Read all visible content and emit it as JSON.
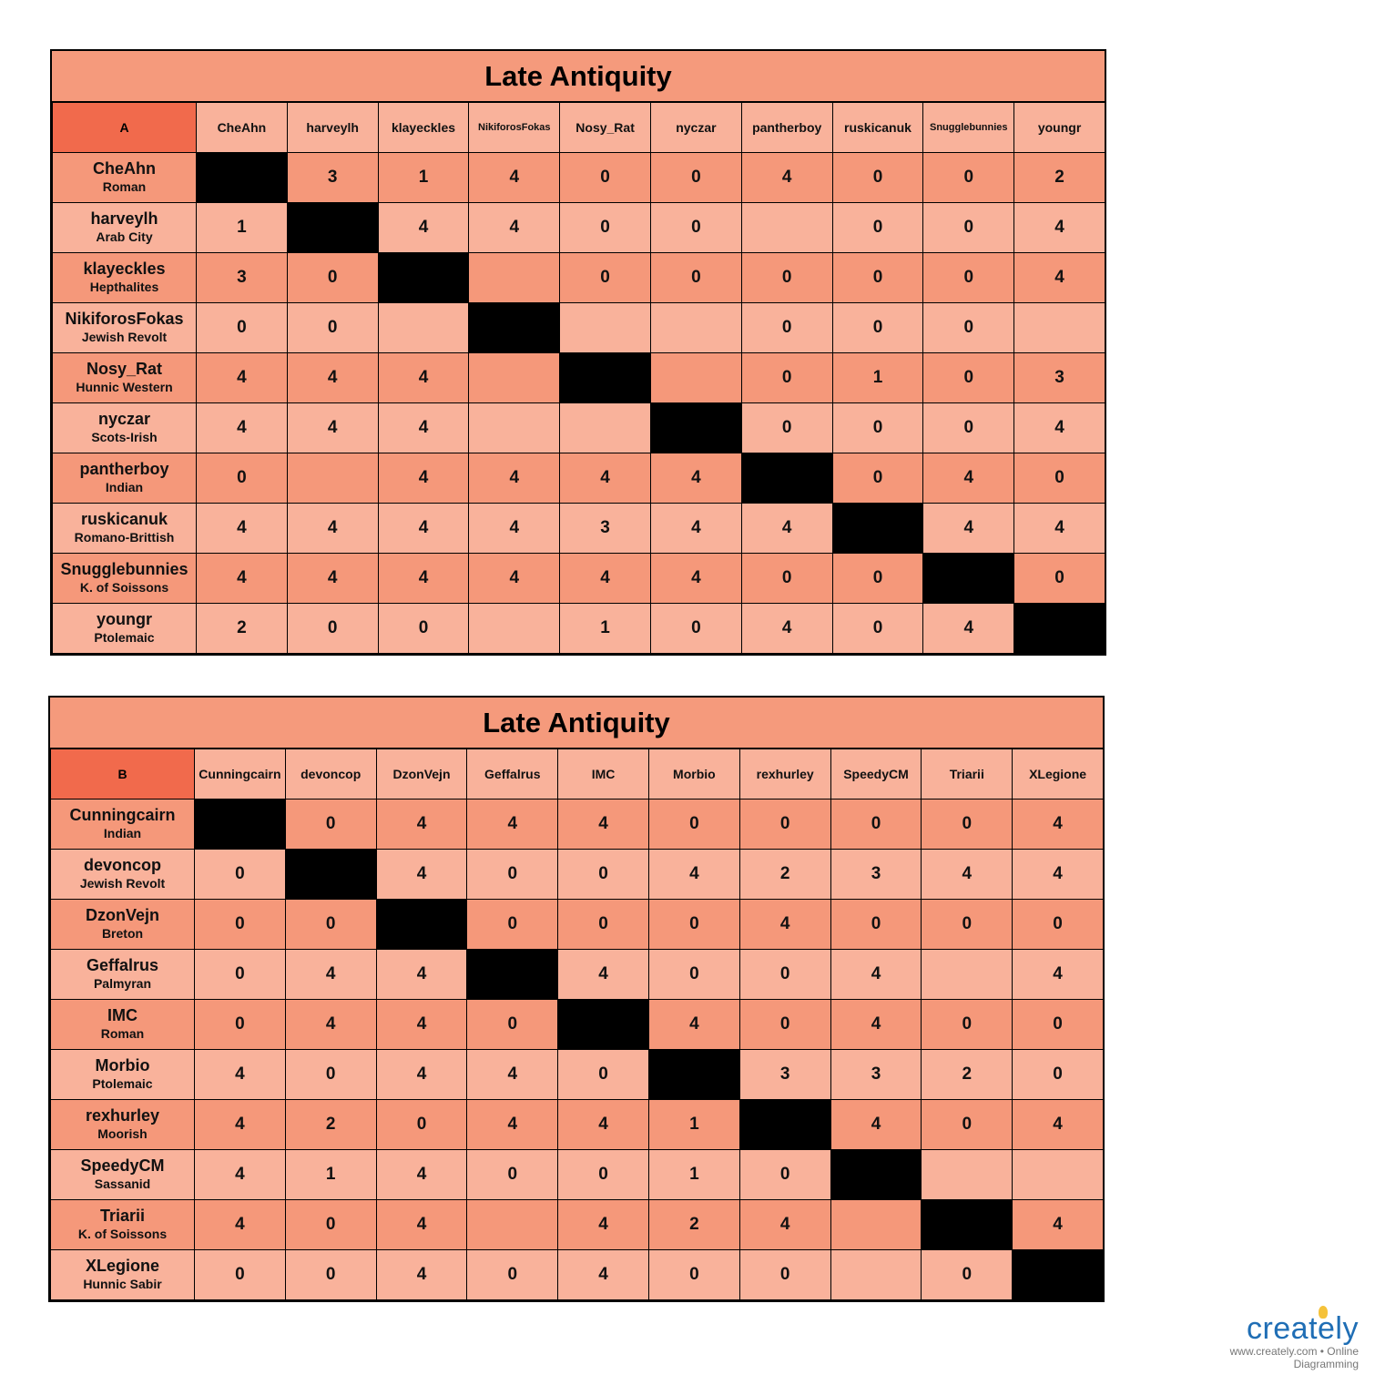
{
  "group_a": {
    "title": "Late Antiquity",
    "letter": "A",
    "columns": [
      "CheAhn",
      "harveylh",
      "klayeckles",
      "NikiforosFokas",
      "Nosy_Rat",
      "nyczar",
      "pantherboy",
      "ruskicanuk",
      "Snugglebunnies",
      "youngr"
    ],
    "rows": [
      {
        "name": "CheAhn",
        "civ": "Roman",
        "cells": [
          "",
          "3",
          "1",
          "4",
          "0",
          "0",
          "4",
          "0",
          "0",
          "2"
        ]
      },
      {
        "name": "harveylh",
        "civ": "Arab City",
        "cells": [
          "1",
          "",
          "4",
          "4",
          "0",
          "0",
          "",
          "0",
          "0",
          "4"
        ]
      },
      {
        "name": "klayeckles",
        "civ": "Hepthalites",
        "cells": [
          "3",
          "0",
          "",
          "",
          "0",
          "0",
          "0",
          "0",
          "0",
          "4"
        ]
      },
      {
        "name": "NikiforosFokas",
        "civ": "Jewish Revolt",
        "cells": [
          "0",
          "0",
          "",
          "",
          "",
          "",
          "0",
          "0",
          "0",
          ""
        ]
      },
      {
        "name": "Nosy_Rat",
        "civ": "Hunnic Western",
        "cells": [
          "4",
          "4",
          "4",
          "",
          "",
          "",
          "0",
          "1",
          "0",
          "3"
        ]
      },
      {
        "name": "nyczar",
        "civ": "Scots-Irish",
        "cells": [
          "4",
          "4",
          "4",
          "",
          "",
          "",
          "0",
          "0",
          "0",
          "4"
        ]
      },
      {
        "name": "pantherboy",
        "civ": "Indian",
        "cells": [
          "0",
          "",
          "4",
          "4",
          "4",
          "4",
          "",
          "0",
          "4",
          "0"
        ]
      },
      {
        "name": "ruskicanuk",
        "civ": "Romano-Brittish",
        "cells": [
          "4",
          "4",
          "4",
          "4",
          "3",
          "4",
          "4",
          "",
          "4",
          "4"
        ]
      },
      {
        "name": "Snugglebunnies",
        "civ": "K. of Soissons",
        "cells": [
          "4",
          "4",
          "4",
          "4",
          "4",
          "4",
          "0",
          "0",
          "",
          "0"
        ]
      },
      {
        "name": "youngr",
        "civ": "Ptolemaic",
        "cells": [
          "2",
          "0",
          "0",
          "",
          "1",
          "0",
          "4",
          "0",
          "4",
          ""
        ]
      }
    ]
  },
  "group_b": {
    "title": "Late Antiquity",
    "letter": "B",
    "columns": [
      "Cunningcairn",
      "devoncop",
      "DzonVejn",
      "Geffalrus",
      "IMC",
      "Morbio",
      "rexhurley",
      "SpeedyCM",
      "Triarii",
      "XLegione"
    ],
    "rows": [
      {
        "name": "Cunningcairn",
        "civ": "Indian",
        "cells": [
          "",
          "0",
          "4",
          "4",
          "4",
          "0",
          "0",
          "0",
          "0",
          "4"
        ]
      },
      {
        "name": "devoncop",
        "civ": "Jewish Revolt",
        "cells": [
          "0",
          "",
          "4",
          "0",
          "0",
          "4",
          "2",
          "3",
          "4",
          "4"
        ]
      },
      {
        "name": "DzonVejn",
        "civ": "Breton",
        "cells": [
          "0",
          "0",
          "",
          "0",
          "0",
          "0",
          "4",
          "0",
          "0",
          "0"
        ]
      },
      {
        "name": "Geffalrus",
        "civ": "Palmyran",
        "cells": [
          "0",
          "4",
          "4",
          "",
          "4",
          "0",
          "0",
          "4",
          "",
          "4"
        ]
      },
      {
        "name": "IMC",
        "civ": "Roman",
        "cells": [
          "0",
          "4",
          "4",
          "0",
          "",
          "4",
          "0",
          "4",
          "0",
          "0"
        ]
      },
      {
        "name": "Morbio",
        "civ": "Ptolemaic",
        "cells": [
          "4",
          "0",
          "4",
          "4",
          "0",
          "",
          "3",
          "3",
          "2",
          "0"
        ]
      },
      {
        "name": "rexhurley",
        "civ": "Moorish",
        "cells": [
          "4",
          "2",
          "0",
          "4",
          "4",
          "1",
          "",
          "4",
          "0",
          "4"
        ]
      },
      {
        "name": "SpeedyCM",
        "civ": "Sassanid",
        "cells": [
          "4",
          "1",
          "4",
          "0",
          "0",
          "1",
          "0",
          "",
          "",
          ""
        ]
      },
      {
        "name": "Triarii",
        "civ": "K. of Soissons",
        "cells": [
          "4",
          "0",
          "4",
          "",
          "4",
          "2",
          "4",
          "",
          "",
          "4"
        ]
      },
      {
        "name": "XLegione",
        "civ": "Hunnic Sabir",
        "cells": [
          "0",
          "0",
          "4",
          "0",
          "4",
          "0",
          "0",
          "",
          "0",
          ""
        ]
      }
    ]
  },
  "colors": {
    "header_dark": "#f16a4c",
    "row_dark": "#f5987a",
    "row_light": "#f9b29b",
    "diagonal": "#000000"
  },
  "watermark": {
    "brand": "creately",
    "tagline": "www.creately.com • Online Diagramming"
  }
}
